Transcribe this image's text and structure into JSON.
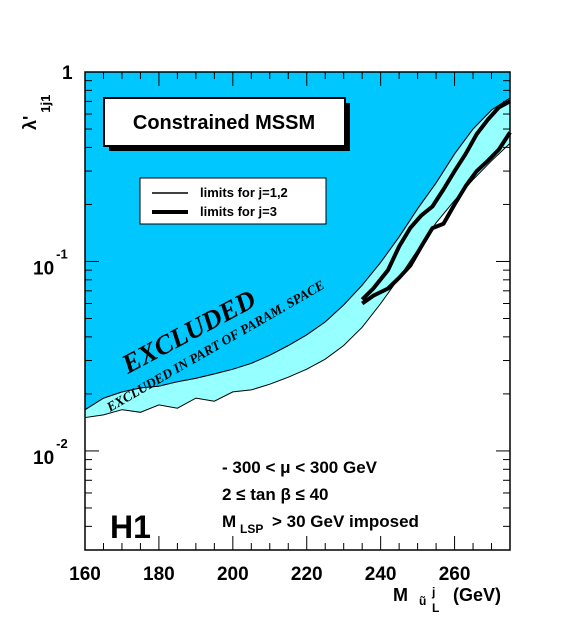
{
  "chart_data": {
    "type": "area",
    "title": "Constrained MSSM",
    "xlabel": "M",
    "xlabel_sub": "ũ",
    "xlabel_sup": "j",
    "xlabel_sub2": "L",
    "xlabel_unit": "(GeV)",
    "ylabel": "λ'",
    "ylabel_sub": "1j1",
    "xlim": [
      160,
      275
    ],
    "ylim": [
      0.003,
      1
    ],
    "yscale": "log",
    "x_ticks": [
      "160",
      "180",
      "200",
      "220",
      "240",
      "260"
    ],
    "y_ticks": [
      {
        "base": "10",
        "exp": "-2"
      },
      {
        "base": "10",
        "exp": "-1"
      },
      {
        "base": "",
        "exp": "1"
      }
    ],
    "series": [
      {
        "name": "EXCLUDED",
        "kind": "excluded-boundary",
        "x": [
          160,
          165,
          170,
          175,
          180,
          185,
          190,
          195,
          200,
          205,
          210,
          215,
          220,
          225,
          230,
          235,
          240,
          245,
          250,
          255,
          260,
          265,
          270,
          275
        ],
        "y": [
          0.0165,
          0.019,
          0.0205,
          0.0215,
          0.022,
          0.0232,
          0.0242,
          0.0255,
          0.027,
          0.029,
          0.032,
          0.036,
          0.041,
          0.048,
          0.059,
          0.075,
          0.099,
          0.135,
          0.19,
          0.26,
          0.37,
          0.5,
          0.63,
          0.73
        ]
      },
      {
        "name": "EXCLUDED IN PART OF PARAM. SPACE",
        "kind": "lower-boundary",
        "x": [
          160,
          165,
          170,
          175,
          180,
          185,
          190,
          195,
          200,
          205,
          210,
          215,
          220,
          225,
          230,
          235,
          240,
          245,
          250,
          255,
          260,
          265,
          270,
          275
        ],
        "y": [
          0.015,
          0.0155,
          0.0165,
          0.016,
          0.0175,
          0.0168,
          0.019,
          0.0183,
          0.0205,
          0.021,
          0.0225,
          0.0245,
          0.027,
          0.0305,
          0.036,
          0.045,
          0.06,
          0.082,
          0.115,
          0.16,
          0.21,
          0.27,
          0.34,
          0.42
        ]
      },
      {
        "name": "limits for j=3 (upper)",
        "kind": "thick",
        "x": [
          235,
          238,
          242,
          245,
          248,
          251,
          254,
          257,
          260,
          263,
          266,
          269,
          272,
          275
        ],
        "y": [
          0.063,
          0.072,
          0.09,
          0.12,
          0.15,
          0.175,
          0.195,
          0.24,
          0.3,
          0.37,
          0.47,
          0.56,
          0.65,
          0.7
        ]
      },
      {
        "name": "limits for j=3 (lower)",
        "kind": "thick",
        "x": [
          235,
          238,
          242,
          245,
          248,
          251,
          254,
          257,
          260,
          263,
          266,
          269,
          272,
          275
        ],
        "y": [
          0.06,
          0.066,
          0.072,
          0.082,
          0.095,
          0.12,
          0.15,
          0.158,
          0.2,
          0.25,
          0.3,
          0.34,
          0.39,
          0.48
        ]
      }
    ],
    "legend": [
      {
        "label": "limits for j=1,2",
        "style": "thin"
      },
      {
        "label": "limits for j=3",
        "style": "thick"
      }
    ],
    "region_labels": [
      "EXCLUDED",
      "EXCLUDED IN PART OF PARAM. SPACE"
    ],
    "annotations": [
      "- 300 < μ < 300 GeV",
      "2  ≤  tan β  ≤  40",
      "M",
      "LSP",
      "> 30 GeV imposed"
    ],
    "experiment": "H1",
    "colors": {
      "excluded": "#00c8ff",
      "partial": "#96ffff",
      "frame": "#000000"
    },
    "legend_placement": "upper-left inside plot",
    "grid": false
  }
}
